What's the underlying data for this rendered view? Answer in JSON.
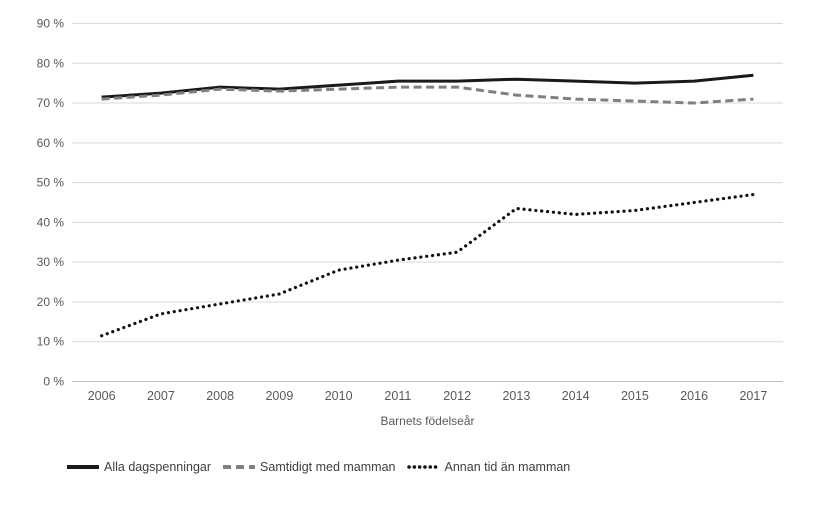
{
  "chart_data": {
    "type": "line",
    "title": "",
    "categories": [
      "2006",
      "2007",
      "2008",
      "2009",
      "2010",
      "2011",
      "2012",
      "2013",
      "2014",
      "2015",
      "2016",
      "2017"
    ],
    "series": [
      {
        "name": "Alla dagspenningar",
        "style": "solid",
        "color": "#1a1a1a",
        "values": [
          71.5,
          72.5,
          74,
          73.5,
          74.5,
          75.5,
          75.5,
          76,
          75.5,
          75,
          75.5,
          77
        ]
      },
      {
        "name": "Samtidigt med mamman",
        "style": "dashed",
        "color": "#808080",
        "values": [
          71,
          72,
          73.5,
          73,
          73.5,
          74,
          74,
          72,
          71,
          70.5,
          70,
          71
        ]
      },
      {
        "name": "Annan tid än mamman",
        "style": "dotted",
        "color": "#111111",
        "values": [
          11.5,
          17,
          19.5,
          22,
          28,
          30.5,
          32.5,
          43.5,
          42,
          43,
          45,
          47
        ]
      }
    ],
    "xlabel": "Barnets födelseår",
    "ylabel": "",
    "ylim": [
      0,
      90
    ],
    "ytick_step": 10,
    "ytick_suffix": " %",
    "grid": true,
    "legend_position": "bottom",
    "colors": {
      "gridline": "#d9d9d9",
      "axis_line": "#bfbfbf",
      "axis_text": "#595959",
      "legend_text": "#404040",
      "background": "#ffffff"
    }
  }
}
